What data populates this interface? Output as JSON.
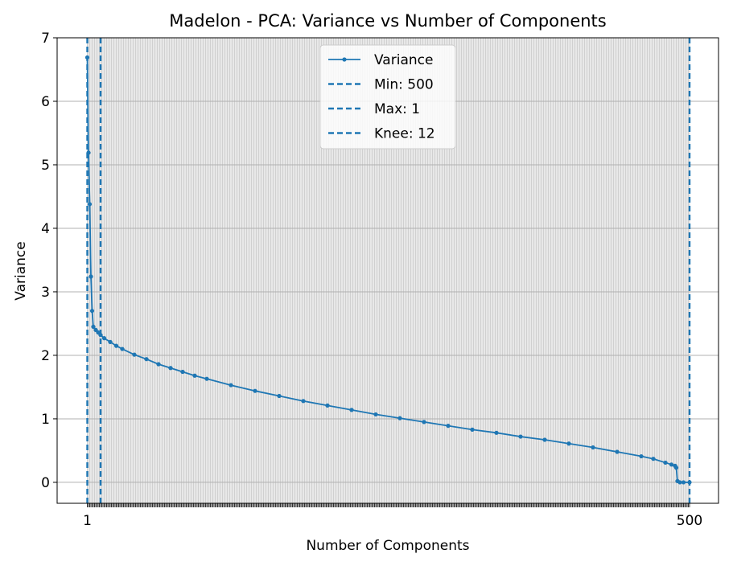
{
  "chart_data": {
    "type": "line",
    "title": "Madelon - PCA: Variance vs Number of Components",
    "xlabel": "Number of Components",
    "ylabel": "Variance",
    "xlim": [
      -24,
      524
    ],
    "ylim": [
      -0.33,
      7.0
    ],
    "yticks": [
      0,
      1,
      2,
      3,
      4,
      5,
      6,
      7
    ],
    "x_tick_every": 1,
    "grid": true,
    "legend_position": "upper center",
    "series": [
      {
        "name": "Variance",
        "color": "#1f77b4",
        "marker": "circle",
        "line_style": "solid",
        "x_range": [
          1,
          500
        ],
        "points": [
          [
            1,
            6.69
          ],
          [
            2,
            5.19
          ],
          [
            3,
            4.38
          ],
          [
            4,
            3.24
          ],
          [
            5,
            2.7
          ],
          [
            6,
            2.45
          ],
          [
            8,
            2.4
          ],
          [
            10,
            2.36
          ],
          [
            12,
            2.32
          ],
          [
            15,
            2.27
          ],
          [
            20,
            2.21
          ],
          [
            25,
            2.15
          ],
          [
            30,
            2.1
          ],
          [
            40,
            2.01
          ],
          [
            50,
            1.94
          ],
          [
            60,
            1.86
          ],
          [
            70,
            1.8
          ],
          [
            80,
            1.74
          ],
          [
            90,
            1.68
          ],
          [
            100,
            1.63
          ],
          [
            120,
            1.53
          ],
          [
            140,
            1.44
          ],
          [
            160,
            1.36
          ],
          [
            180,
            1.28
          ],
          [
            200,
            1.21
          ],
          [
            220,
            1.14
          ],
          [
            240,
            1.07
          ],
          [
            260,
            1.01
          ],
          [
            280,
            0.95
          ],
          [
            300,
            0.89
          ],
          [
            320,
            0.83
          ],
          [
            340,
            0.78
          ],
          [
            360,
            0.72
          ],
          [
            380,
            0.67
          ],
          [
            400,
            0.61
          ],
          [
            420,
            0.55
          ],
          [
            440,
            0.48
          ],
          [
            460,
            0.41
          ],
          [
            470,
            0.37
          ],
          [
            480,
            0.31
          ],
          [
            485,
            0.28
          ],
          [
            488,
            0.26
          ],
          [
            489,
            0.23
          ],
          [
            490,
            0.02
          ],
          [
            492,
            0.0
          ],
          [
            495,
            0.0
          ],
          [
            500,
            0.0
          ]
        ]
      }
    ],
    "vlines": [
      {
        "label": "Min: 500",
        "x": 500,
        "color": "#1f77b4",
        "line_style": "dashed"
      },
      {
        "label": "Max: 1",
        "x": 1,
        "color": "#1f77b4",
        "line_style": "dashed"
      },
      {
        "label": "Knee: 12",
        "x": 12,
        "color": "#1f77b4",
        "line_style": "dashed"
      }
    ]
  }
}
